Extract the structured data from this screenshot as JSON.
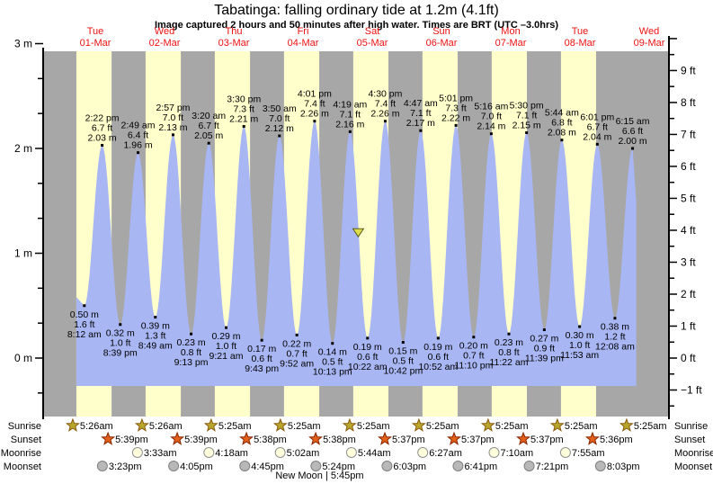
{
  "title": "Tabatinga: falling  ordinary tide at 1.2m (4.1ft)",
  "subtitle": "Image captured 2 hours and 50 minutes after high water. Times are BRT (UTC –3.0hrs)",
  "colors": {
    "night_band": "#a7a7a7",
    "day_band": "#ffffcc",
    "tide_fill": "#a9b6f4",
    "day_label": "#ee1111",
    "axis": "#000000",
    "annotation_text": "#000000",
    "marker_fill": "#dede4a",
    "marker_stroke": "#5a5a20",
    "sunrise_fill": "#b9a72b",
    "sunrise_stroke": "#8a5a10",
    "sunset_fill": "#e2601a",
    "sunset_stroke": "#8a2500",
    "moonrise_fill": "#ffffdd",
    "moonrise_stroke": "#909090",
    "moonset_fill": "#b8b8b8",
    "moonset_stroke": "#808080"
  },
  "chart_data": {
    "type": "area",
    "title": "Tabatinga: falling  ordinary tide at 1.2m (4.1ft)",
    "subtitle": "Image captured 2 hours and 50 minutes after high water. Times are BRT (UTC –3.0hrs)",
    "ylim_m": [
      -0.56,
      2.93
    ],
    "left_axis_unit": "m",
    "left_ticks_m": [
      0,
      1,
      2
    ],
    "right_axis_unit": "ft",
    "right_ticks_ft": [
      -1,
      0,
      1,
      2,
      3,
      4,
      5,
      6,
      7,
      8,
      9
    ],
    "grid": false,
    "days": [
      {
        "weekday": "Tue",
        "date": "01-Mar"
      },
      {
        "weekday": "Wed",
        "date": "02-Mar"
      },
      {
        "weekday": "Thu",
        "date": "03-Mar"
      },
      {
        "weekday": "Fri",
        "date": "04-Mar"
      },
      {
        "weekday": "Sat",
        "date": "05-Mar"
      },
      {
        "weekday": "Sun",
        "date": "06-Mar"
      },
      {
        "weekday": "Mon",
        "date": "07-Mar"
      },
      {
        "weekday": "Tue",
        "date": "08-Mar"
      },
      {
        "weekday": "Wed",
        "date": "09-Mar"
      }
    ],
    "tide_events": [
      {
        "day": 0,
        "time": "8:12 am",
        "type": "low",
        "height_m": 0.5,
        "height_ft": 1.6
      },
      {
        "day": 0,
        "time": "2:22 pm",
        "type": "high",
        "height_m": 2.03,
        "height_ft": 6.7
      },
      {
        "day": 0,
        "time": "8:39 pm",
        "type": "low",
        "height_m": 0.32,
        "height_ft": 1.0
      },
      {
        "day": 1,
        "time": "2:49 am",
        "type": "high",
        "height_m": 1.96,
        "height_ft": 6.4
      },
      {
        "day": 1,
        "time": "8:49 am",
        "type": "low",
        "height_m": 0.39,
        "height_ft": 1.3
      },
      {
        "day": 1,
        "time": "2:57 pm",
        "type": "high",
        "height_m": 2.13,
        "height_ft": 7.0
      },
      {
        "day": 1,
        "time": "9:13 pm",
        "type": "low",
        "height_m": 0.23,
        "height_ft": 0.8
      },
      {
        "day": 2,
        "time": "3:20 am",
        "type": "high",
        "height_m": 2.05,
        "height_ft": 6.7
      },
      {
        "day": 2,
        "time": "9:21 am",
        "type": "low",
        "height_m": 0.29,
        "height_ft": 1.0
      },
      {
        "day": 2,
        "time": "3:30 pm",
        "type": "high",
        "height_m": 2.21,
        "height_ft": 7.3
      },
      {
        "day": 2,
        "time": "9:43 pm",
        "type": "low",
        "height_m": 0.17,
        "height_ft": 0.6
      },
      {
        "day": 3,
        "time": "3:50 am",
        "type": "high",
        "height_m": 2.12,
        "height_ft": 7.0
      },
      {
        "day": 3,
        "time": "9:52 am",
        "type": "low",
        "height_m": 0.22,
        "height_ft": 0.7
      },
      {
        "day": 3,
        "time": "4:01 pm",
        "type": "high",
        "height_m": 2.26,
        "height_ft": 7.4
      },
      {
        "day": 3,
        "time": "10:13 pm",
        "type": "low",
        "height_m": 0.14,
        "height_ft": 0.5
      },
      {
        "day": 4,
        "time": "4:19 am",
        "type": "high",
        "height_m": 2.16,
        "height_ft": 7.1
      },
      {
        "day": 4,
        "time": "10:22 am",
        "type": "low",
        "height_m": 0.19,
        "height_ft": 0.6
      },
      {
        "day": 4,
        "time": "4:30 pm",
        "type": "high",
        "height_m": 2.26,
        "height_ft": 7.4
      },
      {
        "day": 4,
        "time": "10:42 pm",
        "type": "low",
        "height_m": 0.15,
        "height_ft": 0.5
      },
      {
        "day": 5,
        "time": "4:47 am",
        "type": "high",
        "height_m": 2.17,
        "height_ft": 7.1
      },
      {
        "day": 5,
        "time": "10:52 am",
        "type": "low",
        "height_m": 0.19,
        "height_ft": 0.6
      },
      {
        "day": 5,
        "time": "5:01 pm",
        "type": "high",
        "height_m": 2.22,
        "height_ft": 7.3
      },
      {
        "day": 5,
        "time": "11:10 pm",
        "type": "low",
        "height_m": 0.2,
        "height_ft": 0.7
      },
      {
        "day": 6,
        "time": "5:16 am",
        "type": "high",
        "height_m": 2.14,
        "height_ft": 7.0
      },
      {
        "day": 6,
        "time": "11:22 am",
        "type": "low",
        "height_m": 0.23,
        "height_ft": 0.8
      },
      {
        "day": 6,
        "time": "5:30 pm",
        "type": "high",
        "height_m": 2.15,
        "height_ft": 7.1
      },
      {
        "day": 6,
        "time": "11:39 pm",
        "type": "low",
        "height_m": 0.27,
        "height_ft": 0.9
      },
      {
        "day": 7,
        "time": "5:44 am",
        "type": "high",
        "height_m": 2.08,
        "height_ft": 6.8
      },
      {
        "day": 7,
        "time": "11:53 am",
        "type": "low",
        "height_m": 0.3,
        "height_ft": 1.0
      },
      {
        "day": 7,
        "time": "6:01 pm",
        "type": "high",
        "height_m": 2.04,
        "height_ft": 6.7
      },
      {
        "day": 8,
        "time": "12:08 am",
        "type": "low",
        "height_m": 0.38,
        "height_ft": 1.2
      },
      {
        "day": 8,
        "time": "6:15 am",
        "type": "high",
        "height_m": 2.0,
        "height_ft": 6.6
      }
    ],
    "current_tide_marker": {
      "day": 4,
      "time": "7:09 am",
      "level_m": 1.2
    }
  },
  "astro_rows": [
    {
      "id": "sunrise",
      "label": "Sunrise",
      "icon": "sunrise-star-icon",
      "events": [
        {
          "day": 0,
          "time": "5:26am"
        },
        {
          "day": 1,
          "time": "5:26am"
        },
        {
          "day": 2,
          "time": "5:25am"
        },
        {
          "day": 3,
          "time": "5:25am"
        },
        {
          "day": 4,
          "time": "5:25am"
        },
        {
          "day": 5,
          "time": "5:25am"
        },
        {
          "day": 6,
          "time": "5:25am"
        },
        {
          "day": 7,
          "time": "5:25am"
        },
        {
          "day": 8,
          "time": "5:25am"
        }
      ]
    },
    {
      "id": "sunset",
      "label": "Sunset",
      "icon": "sunset-star-icon",
      "events": [
        {
          "day": 0,
          "time": "5:39pm"
        },
        {
          "day": 1,
          "time": "5:39pm"
        },
        {
          "day": 2,
          "time": "5:38pm"
        },
        {
          "day": 3,
          "time": "5:38pm"
        },
        {
          "day": 4,
          "time": "5:37pm"
        },
        {
          "day": 5,
          "time": "5:37pm"
        },
        {
          "day": 6,
          "time": "5:37pm"
        },
        {
          "day": 7,
          "time": "5:36pm"
        }
      ]
    },
    {
      "id": "moonrise",
      "label": "Moonrise",
      "icon": "moonrise-icon",
      "events": [
        {
          "day": 1,
          "time": "3:33am"
        },
        {
          "day": 2,
          "time": "4:18am"
        },
        {
          "day": 3,
          "time": "5:02am"
        },
        {
          "day": 4,
          "time": "5:44am"
        },
        {
          "day": 5,
          "time": "6:27am"
        },
        {
          "day": 6,
          "time": "7:10am"
        },
        {
          "day": 7,
          "time": "7:55am"
        }
      ]
    },
    {
      "id": "moonset",
      "label": "Moonset",
      "icon": "moonset-icon",
      "events": [
        {
          "day": 0,
          "time": "3:23pm"
        },
        {
          "day": 1,
          "time": "4:05pm"
        },
        {
          "day": 2,
          "time": "4:45pm"
        },
        {
          "day": 3,
          "time": "5:24pm"
        },
        {
          "day": 4,
          "time": "6:03pm"
        },
        {
          "day": 5,
          "time": "6:41pm"
        },
        {
          "day": 6,
          "time": "7:21pm"
        },
        {
          "day": 7,
          "time": "8:03pm"
        }
      ]
    }
  ],
  "new_moon": {
    "label": "New Moon",
    "time": "5:45pm",
    "day": 3,
    "separator": "|"
  }
}
